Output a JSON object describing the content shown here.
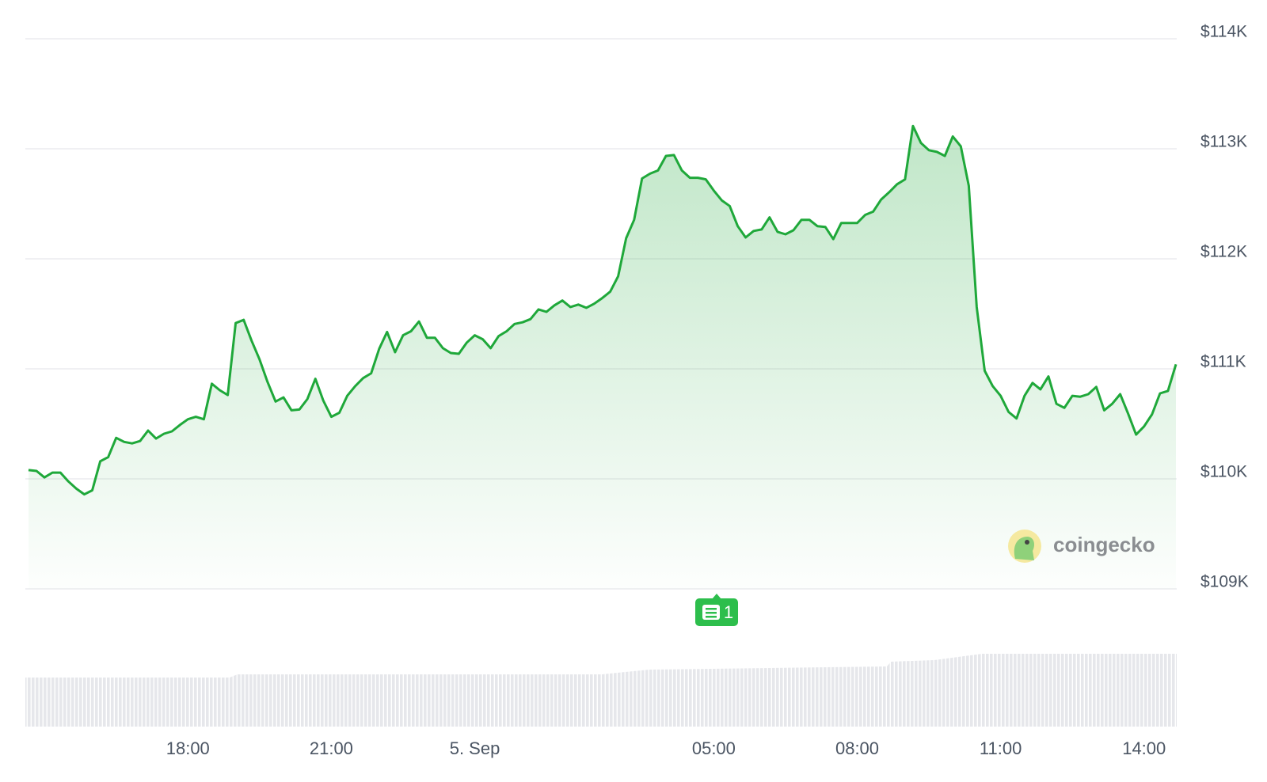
{
  "chart_data": {
    "type": "area",
    "series": [
      {
        "color": "#1fa83a",
        "values": [
          110080,
          110072,
          110013,
          110057,
          110057,
          109977,
          109911,
          109859,
          109896,
          110160,
          110197,
          110373,
          110336,
          110322,
          110344,
          110439,
          110366,
          110410,
          110432,
          110490,
          110542,
          110564,
          110542,
          110865,
          110806,
          110762,
          111416,
          111445,
          111254,
          111085,
          110880,
          110703,
          110740,
          110623,
          110630,
          110726,
          110909,
          110711,
          110564,
          110601,
          110755,
          110843,
          110916,
          110960,
          111181,
          111335,
          111151,
          111305,
          111342,
          111430,
          111283,
          111283,
          111188,
          111144,
          111137,
          111239,
          111305,
          111269,
          111188,
          111298,
          111342,
          111408,
          111423,
          111452,
          111540,
          111518,
          111577,
          111621,
          111562,
          111584,
          111555,
          111592,
          111643,
          111702,
          111841,
          112187,
          112355,
          112730,
          112774,
          112803,
          112935,
          112943,
          112803,
          112737,
          112737,
          112722,
          112620,
          112532,
          112480,
          112297,
          112194,
          112253,
          112267,
          112377,
          112245,
          112223,
          112260,
          112355,
          112355,
          112297,
          112289,
          112179,
          112326,
          112326,
          112326,
          112399,
          112429,
          112539,
          112605,
          112678,
          112722,
          113207,
          113053,
          112987,
          112972,
          112935,
          113112,
          113023,
          112664,
          111562,
          110982,
          110843,
          110755,
          110608,
          110549,
          110755,
          110872,
          110814,
          110931,
          110682,
          110645,
          110755,
          110747,
          110770,
          110836,
          110623,
          110682,
          110770,
          110593,
          110402,
          110476,
          110586,
          110777,
          110799,
          111041
        ]
      }
    ],
    "x": [
      -560,
      -550,
      -540,
      -530,
      -520,
      -510,
      -500,
      -490,
      -480,
      -470,
      -460,
      -450,
      -440,
      -430,
      -420,
      -410,
      -400,
      -390,
      -380,
      -370,
      -360,
      -350,
      -340,
      -330,
      -320,
      -310,
      -300,
      -290,
      -280,
      -270,
      -260,
      -250,
      -240,
      -230,
      -220,
      -210,
      -200,
      -190,
      -180,
      -170,
      -160,
      -150,
      -140,
      -130,
      -120,
      -110,
      -100,
      -90,
      -80,
      -70,
      -60,
      -50,
      -40,
      -30,
      -20,
      -10,
      0,
      10,
      20,
      30,
      40,
      50,
      60,
      70,
      80,
      90,
      100,
      110,
      120,
      130,
      140,
      150,
      160,
      170,
      180,
      190,
      200,
      210,
      220,
      230,
      240,
      250,
      260,
      270,
      280,
      290,
      300,
      310,
      320,
      330,
      340,
      350,
      360,
      370,
      380,
      390,
      400,
      410,
      420,
      430,
      440,
      450,
      460,
      470,
      480,
      490,
      500,
      510,
      520,
      530,
      540,
      550,
      560,
      570,
      580,
      590,
      600,
      610,
      620,
      630,
      640,
      650,
      660,
      670,
      680,
      690,
      700,
      710,
      720,
      730,
      740,
      750,
      760,
      770,
      780,
      790,
      800,
      810,
      820,
      830,
      840,
      850,
      860,
      870,
      880
    ],
    "xlim": [
      -564,
      881
    ],
    "xticks": [
      {
        "value": -360,
        "label": "18:00"
      },
      {
        "value": -180,
        "label": "21:00"
      },
      {
        "value": 0,
        "label": "5. Sep"
      },
      {
        "value": 300,
        "label": "05:00"
      },
      {
        "value": 480,
        "label": "08:00"
      },
      {
        "value": 660,
        "label": "11:00"
      },
      {
        "value": 840,
        "label": "14:00"
      }
    ],
    "ylim": [
      109000,
      114000
    ],
    "yticks": [
      {
        "value": 109000,
        "label": "$109K"
      },
      {
        "value": 110000,
        "label": "$110K"
      },
      {
        "value": 111000,
        "label": "$111K"
      },
      {
        "value": 112000,
        "label": "$112K"
      },
      {
        "value": 113000,
        "label": "$113K"
      },
      {
        "value": 114000,
        "label": "$114K"
      }
    ],
    "grid": true,
    "annotation": "1",
    "watermark": "coingecko"
  }
}
